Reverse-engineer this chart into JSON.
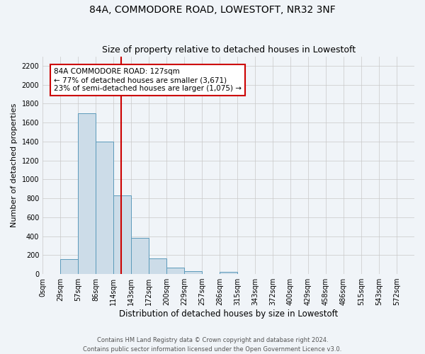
{
  "title": "84A, COMMODORE ROAD, LOWESTOFT, NR32 3NF",
  "subtitle": "Size of property relative to detached houses in Lowestoft",
  "xlabel": "Distribution of detached houses by size in Lowestoft",
  "ylabel": "Number of detached properties",
  "bin_labels": [
    "0sqm",
    "29sqm",
    "57sqm",
    "86sqm",
    "114sqm",
    "143sqm",
    "172sqm",
    "200sqm",
    "229sqm",
    "257sqm",
    "286sqm",
    "315sqm",
    "343sqm",
    "372sqm",
    "400sqm",
    "429sqm",
    "458sqm",
    "486sqm",
    "515sqm",
    "543sqm",
    "572sqm"
  ],
  "bin_values": [
    0,
    155,
    1700,
    1400,
    830,
    385,
    165,
    65,
    30,
    0,
    25,
    0,
    0,
    0,
    0,
    0,
    0,
    0,
    0,
    0,
    0
  ],
  "bar_color": "#ccdce8",
  "bar_edge_color": "#5b9aba",
  "property_line_x": 4,
  "bin_width": 1,
  "ylim": [
    0,
    2300
  ],
  "yticks": [
    0,
    200,
    400,
    600,
    800,
    1000,
    1200,
    1400,
    1600,
    1800,
    2000,
    2200
  ],
  "annotation_title": "84A COMMODORE ROAD: 127sqm",
  "annotation_line1": "← 77% of detached houses are smaller (3,671)",
  "annotation_line2": "23% of semi-detached houses are larger (1,075) →",
  "annotation_box_color": "#ffffff",
  "annotation_box_edge": "#cc0000",
  "vline_color": "#cc0000",
  "footer1": "Contains HM Land Registry data © Crown copyright and database right 2024.",
  "footer2": "Contains public sector information licensed under the Open Government Licence v3.0.",
  "background_color": "#f0f4f8",
  "grid_color": "#c8c8c8",
  "title_fontsize": 10,
  "subtitle_fontsize": 9,
  "tick_fontsize": 7,
  "ylabel_fontsize": 8,
  "xlabel_fontsize": 8.5,
  "footer_fontsize": 6,
  "annotation_fontsize": 7.5
}
